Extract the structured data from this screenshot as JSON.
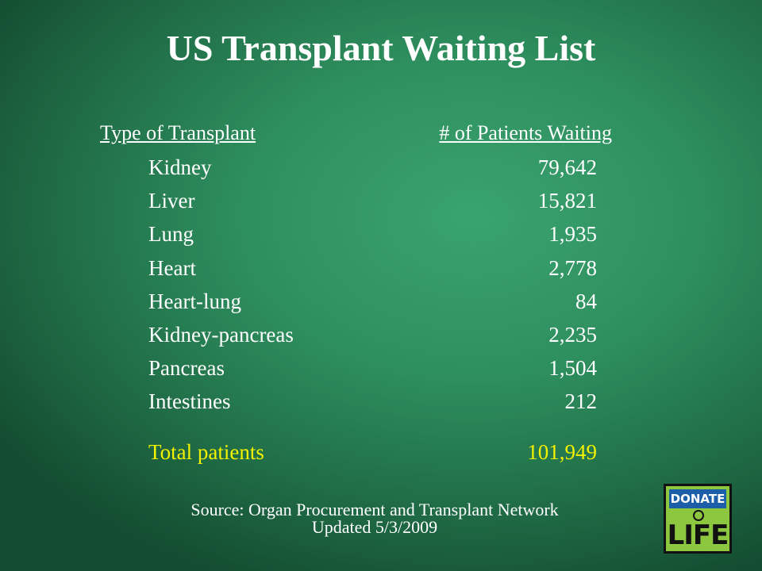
{
  "header": {
    "title": "US Transplant Waiting List"
  },
  "table": {
    "headers": [
      "Type of Transplant",
      "# of Patients Waiting"
    ],
    "rows": [
      [
        "Kidney",
        "79,642"
      ],
      [
        "Liver",
        "15,821"
      ],
      [
        "Lung",
        "1,935"
      ],
      [
        "Heart",
        "2,778"
      ],
      [
        "Heart-lung",
        "84"
      ],
      [
        "Kidney-pancreas",
        "2,235"
      ],
      [
        "Pancreas",
        "1,504"
      ],
      [
        "Intestines",
        "212"
      ]
    ],
    "total": [
      "Total patients",
      "101,949"
    ]
  },
  "footer": {
    "source": "Source: Organ Procurement and Transplant Network",
    "updated": "Updated 5/3/2009"
  },
  "logo": {
    "top": "DONATE",
    "bottom": "LIFE"
  }
}
